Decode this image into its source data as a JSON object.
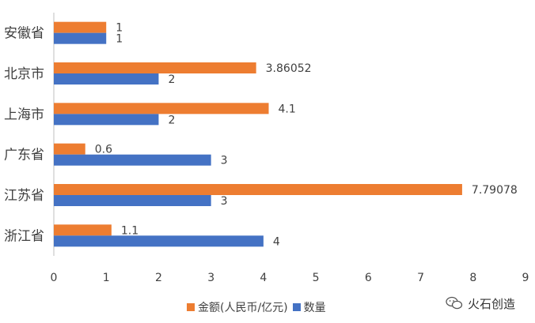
{
  "chart_data": {
    "type": "bar",
    "orientation": "horizontal",
    "categories": [
      "安徽省",
      "北京市",
      "上海市",
      "广东省",
      "江苏省",
      "浙江省"
    ],
    "series": [
      {
        "name": "金额(人民币/亿元)",
        "color": "#ED7D31",
        "values": [
          1,
          3.86052,
          4.1,
          0.6,
          7.79078,
          1.1
        ],
        "labels": [
          "1",
          "3.86052",
          "4.1",
          "0.6",
          "7.79078",
          "1.1"
        ]
      },
      {
        "name": "数量",
        "color": "#4472C4",
        "values": [
          1,
          2,
          2,
          3,
          3,
          4
        ],
        "labels": [
          "1",
          "2",
          "2",
          "3",
          "3",
          "4"
        ]
      }
    ],
    "xlim": [
      0,
      9
    ],
    "xticks": [
      "0",
      "1",
      "2",
      "3",
      "4",
      "5",
      "6",
      "7",
      "8",
      "9"
    ],
    "title": "",
    "xlabel": "",
    "ylabel": "",
    "grid": false,
    "legend_position": "bottom"
  },
  "watermark": {
    "text": "火石创造",
    "icon": "wechat-icon"
  }
}
